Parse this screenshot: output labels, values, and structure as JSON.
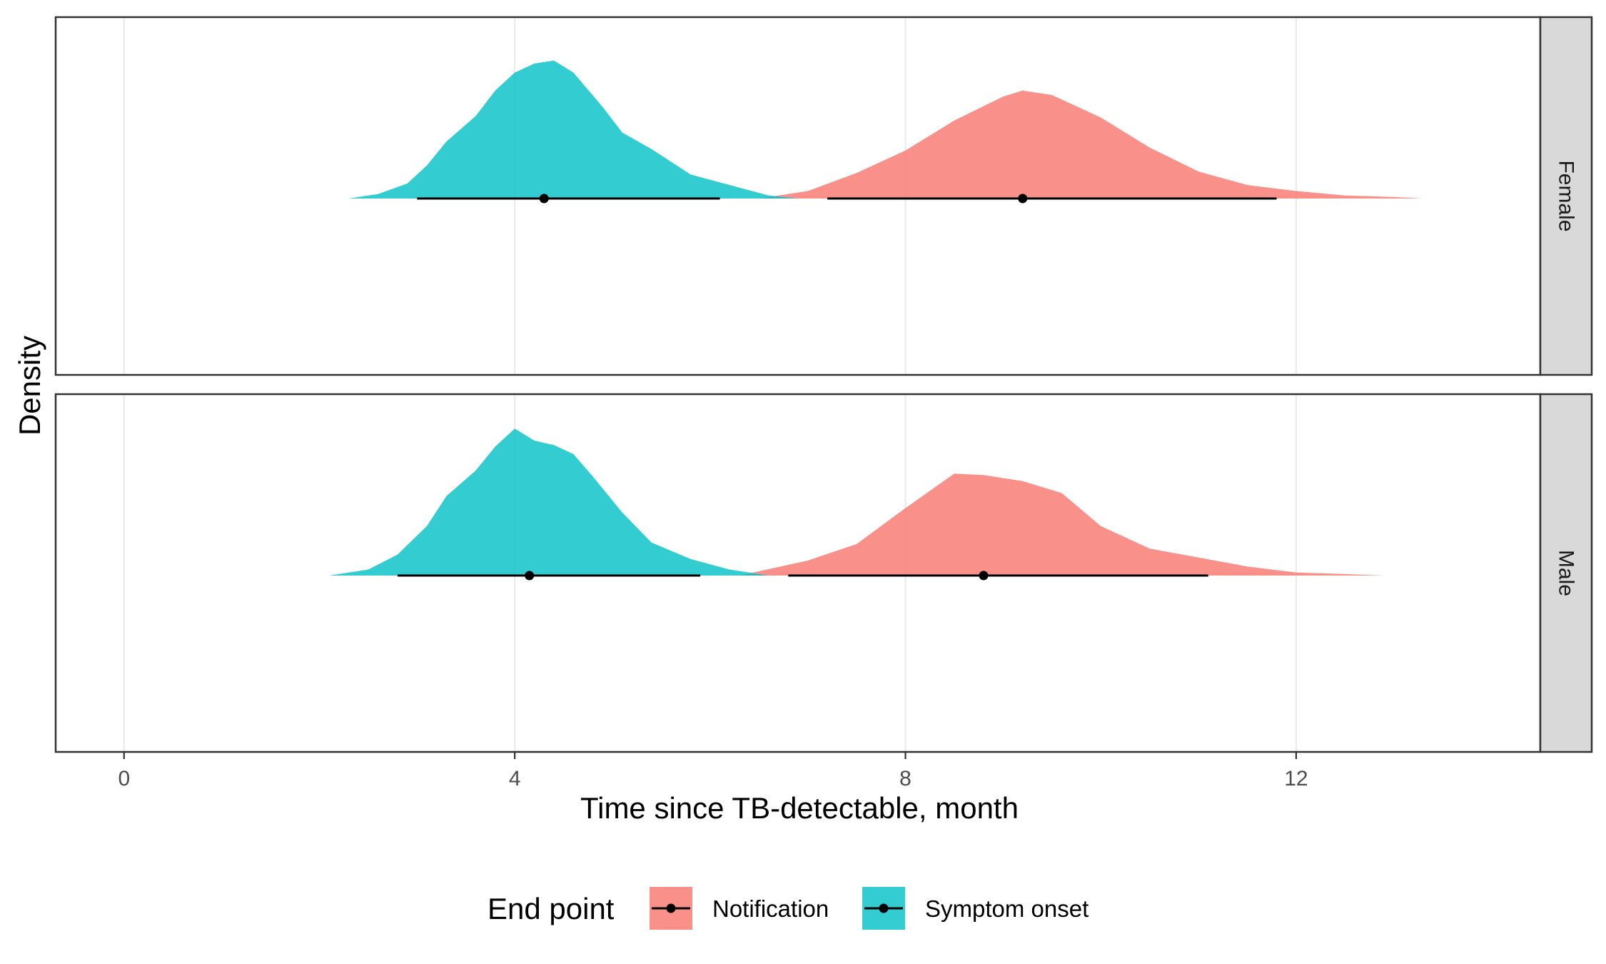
{
  "chart_data": {
    "type": "area",
    "subtype": "faceted density (halfeye) with point interval",
    "xlabel": "Time since TB-detectable, month",
    "ylabel": "Density",
    "xlim": [
      -0.7,
      14.5
    ],
    "x_ticks": [
      0,
      4,
      8,
      12
    ],
    "x_tick_labels": [
      "0",
      "4",
      "8",
      "12"
    ],
    "grid": true,
    "legend": {
      "title": "End point",
      "position": "bottom",
      "entries": [
        "Notification",
        "Symptom onset"
      ]
    },
    "colors": {
      "Notification": "#F8766D",
      "Symptom onset": "#00BFC4"
    },
    "panels": [
      {
        "strip": "Female",
        "series": [
          {
            "name": "Notification",
            "x": [
              6.5,
              7.0,
              7.5,
              8.0,
              8.5,
              9.0,
              9.2,
              9.5,
              10.0,
              10.5,
              11.0,
              11.5,
              12.0,
              12.5,
              13.0,
              13.3
            ],
            "density": [
              0.0,
              0.05,
              0.17,
              0.32,
              0.52,
              0.68,
              0.72,
              0.69,
              0.54,
              0.34,
              0.18,
              0.09,
              0.05,
              0.02,
              0.01,
              0.0
            ],
            "point": 9.2,
            "interval": [
              7.2,
              11.8
            ]
          },
          {
            "name": "Symptom onset",
            "x": [
              2.3,
              2.6,
              2.9,
              3.1,
              3.3,
              3.6,
              3.8,
              4.0,
              4.2,
              4.4,
              4.6,
              4.9,
              5.1,
              5.4,
              5.8,
              6.2,
              6.6,
              6.9
            ],
            "density": [
              0.0,
              0.03,
              0.1,
              0.22,
              0.38,
              0.55,
              0.72,
              0.84,
              0.9,
              0.92,
              0.84,
              0.61,
              0.44,
              0.33,
              0.16,
              0.09,
              0.02,
              0.0
            ],
            "point": 4.3,
            "interval": [
              3.0,
              6.1
            ]
          }
        ]
      },
      {
        "strip": "Male",
        "series": [
          {
            "name": "Notification",
            "x": [
              6.3,
              7.0,
              7.5,
              8.0,
              8.5,
              8.8,
              9.2,
              9.6,
              10.0,
              10.5,
              11.0,
              11.5,
              12.0,
              12.5,
              12.9
            ],
            "density": [
              0.0,
              0.1,
              0.21,
              0.45,
              0.68,
              0.67,
              0.63,
              0.55,
              0.33,
              0.18,
              0.12,
              0.06,
              0.02,
              0.01,
              0.0
            ],
            "point": 8.8,
            "interval": [
              6.8,
              11.1
            ]
          },
          {
            "name": "Symptom onset",
            "x": [
              2.1,
              2.5,
              2.8,
              3.1,
              3.3,
              3.6,
              3.8,
              4.0,
              4.2,
              4.4,
              4.6,
              4.8,
              5.1,
              5.4,
              5.8,
              6.2,
              6.6
            ],
            "density": [
              0.0,
              0.04,
              0.14,
              0.33,
              0.53,
              0.7,
              0.86,
              0.98,
              0.9,
              0.87,
              0.81,
              0.66,
              0.42,
              0.22,
              0.11,
              0.04,
              0.0
            ],
            "point": 4.15,
            "interval": [
              2.8,
              5.9
            ]
          }
        ]
      }
    ]
  }
}
